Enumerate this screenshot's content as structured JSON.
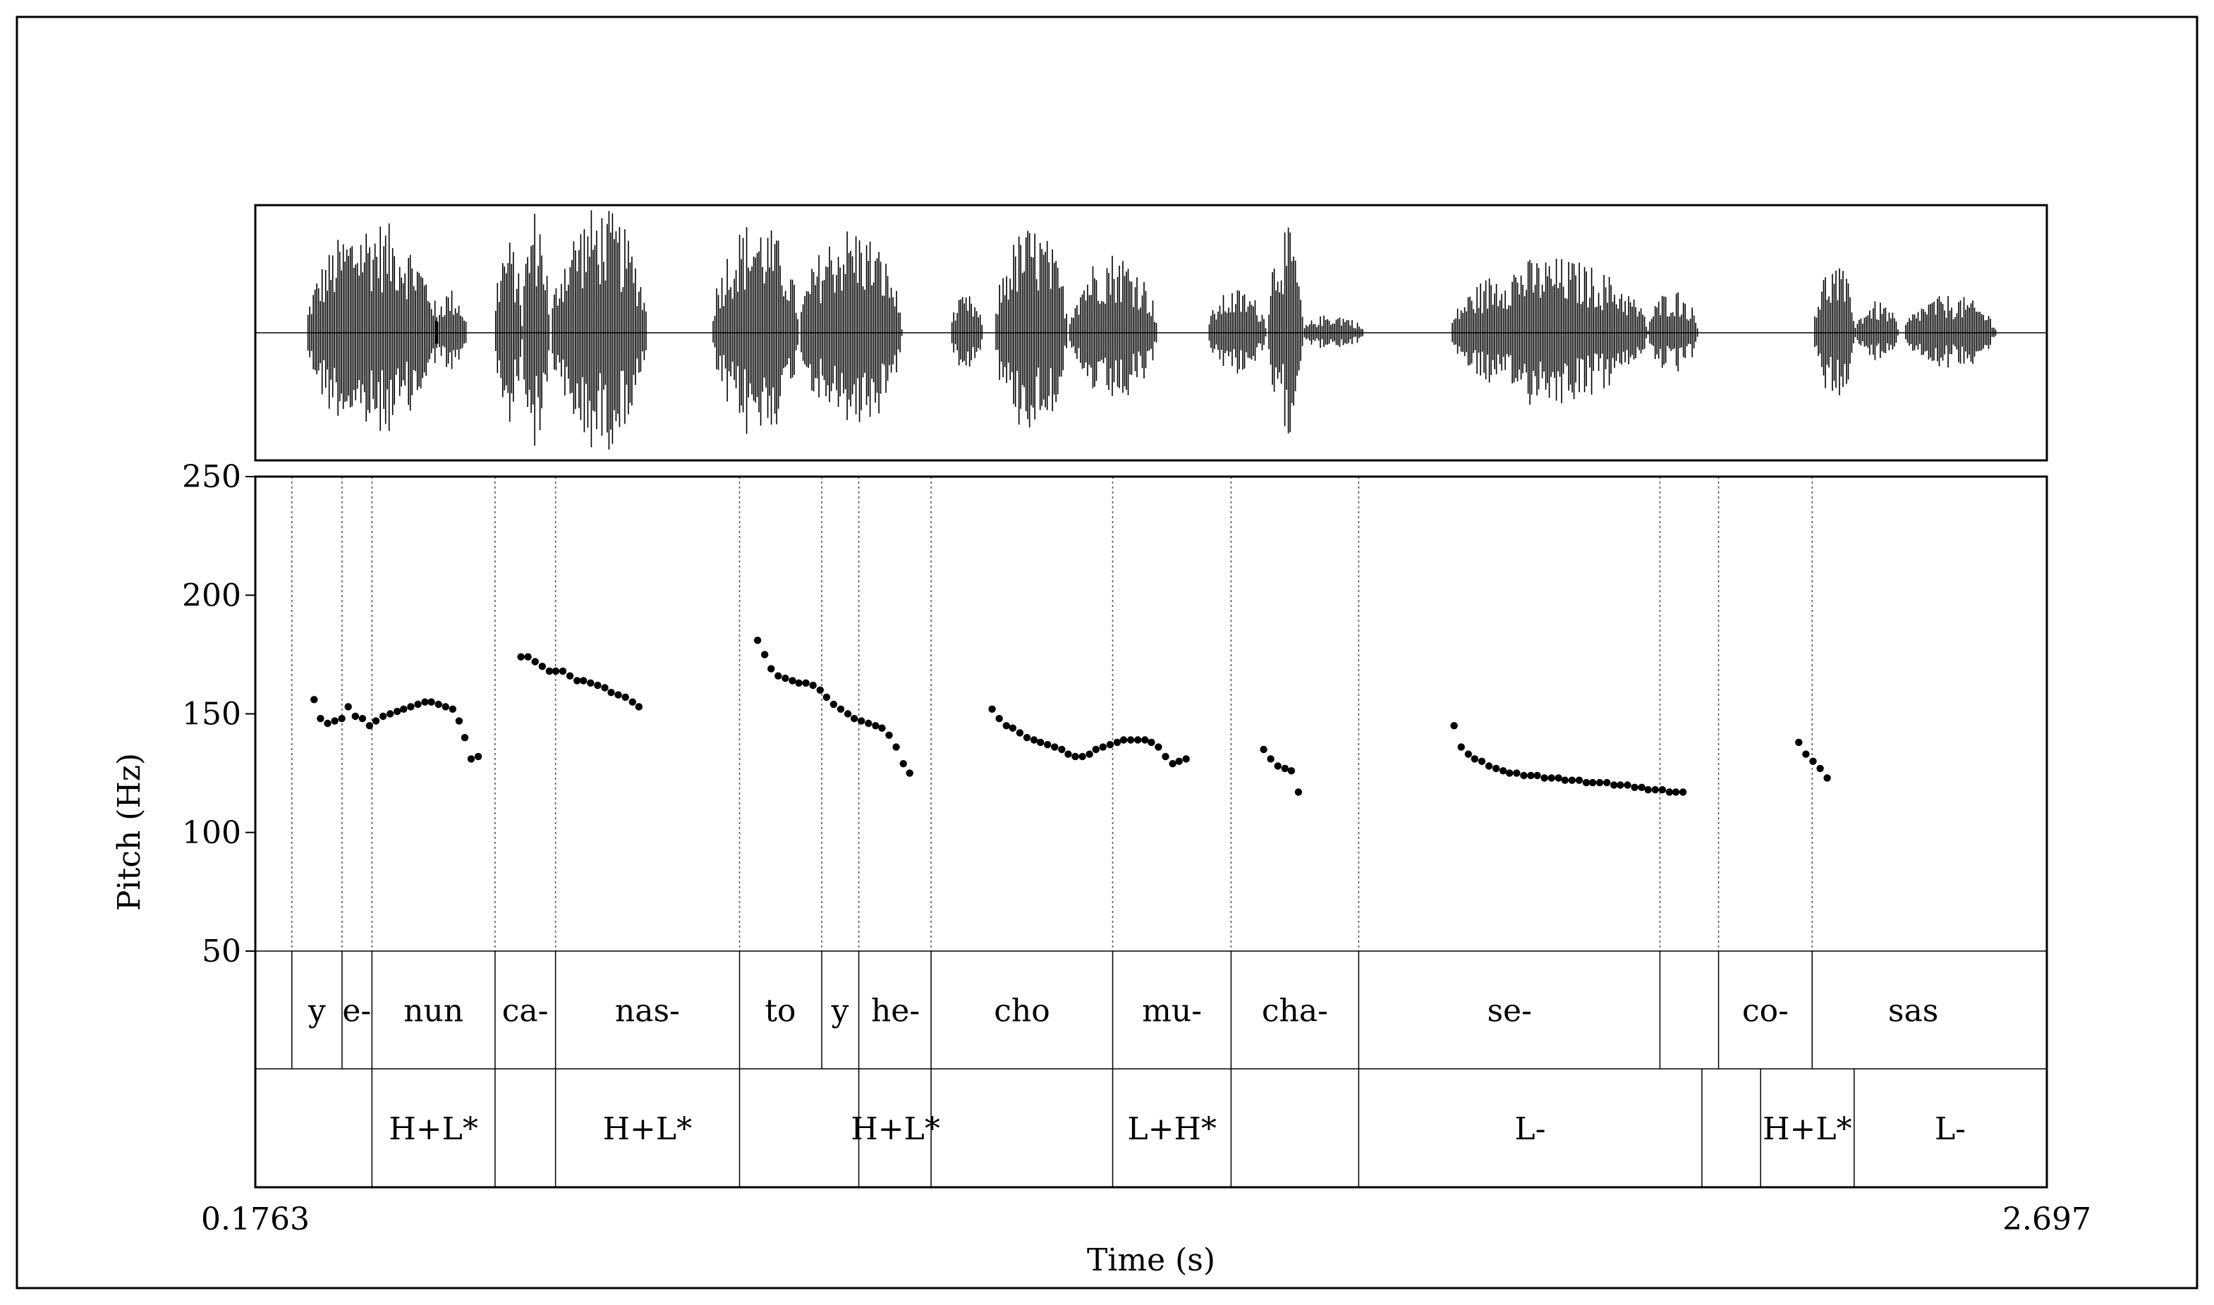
{
  "chart_data": {
    "type": "scatter",
    "xlabel": "Time (s)",
    "ylabel": "Pitch (Hz)",
    "xlim": [
      0.1763,
      2.697
    ],
    "ylim": [
      50,
      250
    ],
    "x_tick_labels": [
      "0.1763",
      "2.697"
    ],
    "y_ticks": [
      50,
      100,
      150,
      200,
      250
    ],
    "y_tick_labels": [
      "50",
      "100",
      "150",
      "200",
      "250"
    ],
    "grid": false,
    "legend": "none",
    "pitch_points": [
      [
        0.259,
        156
      ],
      [
        0.268,
        148
      ],
      [
        0.278,
        146
      ],
      [
        0.288,
        147
      ],
      [
        0.298,
        148
      ],
      [
        0.307,
        153
      ],
      [
        0.317,
        149
      ],
      [
        0.327,
        148
      ],
      [
        0.337,
        145
      ],
      [
        0.346,
        147
      ],
      [
        0.356,
        149
      ],
      [
        0.366,
        150
      ],
      [
        0.376,
        151
      ],
      [
        0.385,
        152
      ],
      [
        0.395,
        153
      ],
      [
        0.405,
        154
      ],
      [
        0.415,
        155
      ],
      [
        0.424,
        155
      ],
      [
        0.434,
        154
      ],
      [
        0.444,
        153
      ],
      [
        0.454,
        152
      ],
      [
        0.463,
        147
      ],
      [
        0.471,
        140
      ],
      [
        0.48,
        131
      ],
      [
        0.49,
        132
      ],
      [
        0.55,
        174
      ],
      [
        0.56,
        174
      ],
      [
        0.57,
        172
      ],
      [
        0.58,
        170
      ],
      [
        0.59,
        168
      ],
      [
        0.599,
        168
      ],
      [
        0.609,
        168
      ],
      [
        0.619,
        166
      ],
      [
        0.629,
        164
      ],
      [
        0.638,
        164
      ],
      [
        0.648,
        163
      ],
      [
        0.658,
        162
      ],
      [
        0.668,
        161
      ],
      [
        0.677,
        159
      ],
      [
        0.687,
        158
      ],
      [
        0.697,
        157
      ],
      [
        0.707,
        155
      ],
      [
        0.716,
        153
      ],
      [
        0.883,
        181
      ],
      [
        0.893,
        175
      ],
      [
        0.902,
        169
      ],
      [
        0.912,
        166
      ],
      [
        0.922,
        165
      ],
      [
        0.932,
        164
      ],
      [
        0.941,
        163
      ],
      [
        0.951,
        163
      ],
      [
        0.961,
        162
      ],
      [
        0.971,
        160
      ],
      [
        0.98,
        157
      ],
      [
        0.99,
        154
      ],
      [
        1.0,
        152
      ],
      [
        1.01,
        150
      ],
      [
        1.019,
        148
      ],
      [
        1.029,
        147
      ],
      [
        1.039,
        146
      ],
      [
        1.049,
        145
      ],
      [
        1.058,
        144
      ],
      [
        1.068,
        141
      ],
      [
        1.078,
        136
      ],
      [
        1.088,
        129
      ],
      [
        1.097,
        125
      ],
      [
        1.213,
        152
      ],
      [
        1.223,
        148
      ],
      [
        1.233,
        145
      ],
      [
        1.242,
        144
      ],
      [
        1.252,
        142
      ],
      [
        1.262,
        140
      ],
      [
        1.272,
        139
      ],
      [
        1.281,
        138
      ],
      [
        1.291,
        137
      ],
      [
        1.301,
        136
      ],
      [
        1.311,
        135
      ],
      [
        1.32,
        133
      ],
      [
        1.33,
        132
      ],
      [
        1.34,
        132
      ],
      [
        1.35,
        133
      ],
      [
        1.359,
        135
      ],
      [
        1.369,
        136
      ],
      [
        1.379,
        137
      ],
      [
        1.389,
        138
      ],
      [
        1.398,
        139
      ],
      [
        1.408,
        139
      ],
      [
        1.418,
        139
      ],
      [
        1.428,
        139
      ],
      [
        1.437,
        138
      ],
      [
        1.447,
        136
      ],
      [
        1.457,
        132
      ],
      [
        1.467,
        129
      ],
      [
        1.476,
        130
      ],
      [
        1.486,
        131
      ],
      [
        1.595,
        135
      ],
      [
        1.605,
        131
      ],
      [
        1.615,
        128
      ],
      [
        1.625,
        127
      ],
      [
        1.634,
        126
      ],
      [
        1.644,
        117
      ],
      [
        1.863,
        145
      ],
      [
        1.873,
        136
      ],
      [
        1.883,
        133
      ],
      [
        1.892,
        131
      ],
      [
        1.902,
        130
      ],
      [
        1.912,
        128
      ],
      [
        1.922,
        127
      ],
      [
        1.932,
        126
      ],
      [
        1.941,
        125
      ],
      [
        1.951,
        125
      ],
      [
        1.961,
        124
      ],
      [
        1.971,
        124
      ],
      [
        1.98,
        124
      ],
      [
        1.99,
        123
      ],
      [
        2.0,
        123
      ],
      [
        2.01,
        123
      ],
      [
        2.019,
        122
      ],
      [
        2.029,
        122
      ],
      [
        2.039,
        122
      ],
      [
        2.049,
        121
      ],
      [
        2.058,
        121
      ],
      [
        2.068,
        121
      ],
      [
        2.078,
        121
      ],
      [
        2.088,
        120
      ],
      [
        2.097,
        120
      ],
      [
        2.107,
        120
      ],
      [
        2.117,
        119
      ],
      [
        2.127,
        119
      ],
      [
        2.136,
        118
      ],
      [
        2.146,
        118
      ],
      [
        2.156,
        118
      ],
      [
        2.166,
        117
      ],
      [
        2.175,
        117
      ],
      [
        2.185,
        117
      ],
      [
        2.348,
        138
      ],
      [
        2.358,
        133
      ],
      [
        2.368,
        130
      ],
      [
        2.378,
        127
      ],
      [
        2.388,
        123
      ]
    ],
    "waveform_segments": [
      [
        0.248,
        0.434,
        0.9
      ],
      [
        0.428,
        0.474,
        0.35
      ],
      [
        0.512,
        0.552,
        0.75
      ],
      [
        0.552,
        0.59,
        1.0
      ],
      [
        0.592,
        0.728,
        1.0
      ],
      [
        0.818,
        0.942,
        0.9
      ],
      [
        0.942,
        1.086,
        0.85
      ],
      [
        1.154,
        1.2,
        0.3
      ],
      [
        1.216,
        1.32,
        0.85
      ],
      [
        1.32,
        1.446,
        0.65
      ],
      [
        1.516,
        1.6,
        0.35
      ],
      [
        1.6,
        1.65,
        0.85
      ],
      [
        1.65,
        1.736,
        0.15
      ],
      [
        1.858,
        2.136,
        0.6
      ],
      [
        2.136,
        2.206,
        0.35
      ],
      [
        2.368,
        2.428,
        0.55
      ],
      [
        2.428,
        2.488,
        0.25
      ],
      [
        2.496,
        2.626,
        0.3
      ]
    ],
    "tiers": [
      {
        "boundaries": [
          0.2277,
          0.2983,
          0.3404,
          0.5136,
          0.5987,
          0.8576,
          0.9733,
          1.0254,
          1.1271,
          1.3826,
          1.5492,
          1.7288,
          2.1526,
          2.2351,
          2.3668
        ],
        "dotted_boundaries": [
          0.2277,
          0.2983,
          0.3404,
          0.5136,
          0.5987,
          0.8576,
          0.9733,
          1.0254,
          1.1271,
          1.3826,
          1.5492,
          1.7288,
          2.1526,
          2.2351,
          2.3668
        ],
        "labels": [
          {
            "text": "y",
            "x": 0.263
          },
          {
            "text": "e-",
            "x": 0.319
          },
          {
            "text": "nun",
            "x": 0.427
          },
          {
            "text": "ca-",
            "x": 0.556
          },
          {
            "text": "nas-",
            "x": 0.728
          },
          {
            "text": "to",
            "x": 0.915
          },
          {
            "text": "y",
            "x": 0.999
          },
          {
            "text": "he-",
            "x": 1.077
          },
          {
            "text": "cho",
            "x": 1.255
          },
          {
            "text": "mu-",
            "x": 1.466
          },
          {
            "text": "cha-",
            "x": 1.639
          },
          {
            "text": "se-",
            "x": 1.941
          },
          {
            "text": "co-",
            "x": 2.301
          },
          {
            "text": "sas",
            "x": 2.509
          }
        ]
      },
      {
        "boundaries": [
          0.3404,
          0.5136,
          0.5987,
          0.8576,
          1.0254,
          1.1271,
          1.3826,
          1.5492,
          1.7288,
          2.2117,
          2.2943,
          2.4259
        ],
        "labels": [
          {
            "text": "H+L*",
            "x": 0.427
          },
          {
            "text": "H+L*",
            "x": 0.728
          },
          {
            "text": "H+L*",
            "x": 1.077
          },
          {
            "text": "L+H*",
            "x": 1.466
          },
          {
            "text": "L-",
            "x": 1.97
          },
          {
            "text": "H+L*",
            "x": 2.36
          },
          {
            "text": "L-",
            "x": 2.561
          }
        ]
      }
    ]
  }
}
